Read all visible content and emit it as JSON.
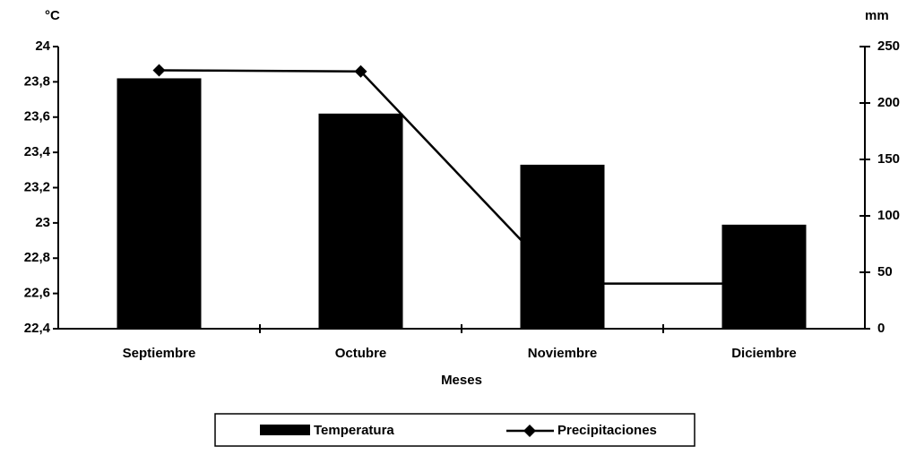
{
  "chart_data": {
    "type": "bar-line",
    "x_label": "Meses",
    "y_label": "°C",
    "y2_label": "mm",
    "categories": [
      "Septiembre",
      "Octubre",
      "Noviembre",
      "Diciembre"
    ],
    "series": [
      {
        "name": "Temperatura",
        "type": "bar",
        "color": "#000000",
        "values": [
          23.82,
          23.62,
          23.33,
          22.99
        ]
      },
      {
        "name": "Precipitaciones",
        "type": "line",
        "axis": "y2",
        "color": "#000000",
        "values": [
          229,
          228,
          40,
          40
        ]
      }
    ],
    "ylim": [
      22.4,
      24
    ],
    "yticks": [
      {
        "value": 22.4,
        "label": "22,4"
      },
      {
        "value": 22.6,
        "label": "22,6"
      },
      {
        "value": 22.8,
        "label": "22,8"
      },
      23,
      {
        "value": 23.2,
        "label": "23,2"
      },
      {
        "value": 23.4,
        "label": "23,4"
      },
      {
        "value": 23.6,
        "label": "23,6"
      },
      {
        "value": 23.8,
        "label": "23,8"
      },
      24
    ],
    "y2lim": [
      0,
      250
    ],
    "y2ticks": [
      0,
      50,
      100,
      150,
      200,
      250
    ],
    "legend": "bottom"
  }
}
